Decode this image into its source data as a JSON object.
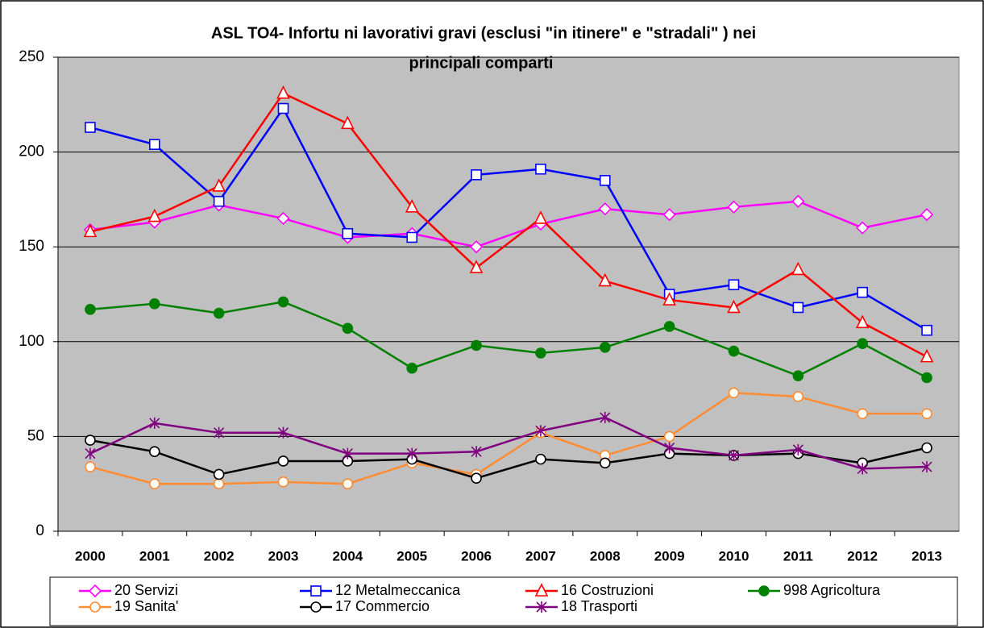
{
  "chart_data": {
    "type": "line",
    "title": [
      "ASL TO4- Infortu ni lavorativi gravi (esclusi \"in itinere\" e \"stradali\" ) nei",
      "principali comparti"
    ],
    "categories": [
      "2000",
      "2001",
      "2002",
      "2003",
      "2004",
      "2005",
      "2006",
      "2007",
      "2008",
      "2009",
      "2010",
      "2011",
      "2012",
      "2013"
    ],
    "ylim": [
      0,
      250
    ],
    "yticks": [
      0,
      50,
      100,
      150,
      200,
      250
    ],
    "grid": true,
    "legend": "bottom",
    "series": [
      {
        "name": "20 Servizi",
        "color": "#ff00ff",
        "marker": "diamond",
        "values": [
          159,
          163,
          172,
          165,
          155,
          157,
          150,
          162,
          170,
          167,
          171,
          174,
          160,
          167
        ]
      },
      {
        "name": "12 Metalmeccanica",
        "color": "#0000ff",
        "marker": "square",
        "values": [
          213,
          204,
          174,
          223,
          157,
          155,
          188,
          191,
          185,
          125,
          130,
          118,
          126,
          106
        ]
      },
      {
        "name": "16 Costruzioni",
        "color": "#ff0000",
        "marker": "triangle",
        "values": [
          158,
          166,
          182,
          231,
          215,
          171,
          139,
          165,
          132,
          122,
          118,
          138,
          110,
          92
        ]
      },
      {
        "name": "998 Agricoltura",
        "color": "#008000",
        "marker": "dot",
        "values": [
          117,
          120,
          115,
          121,
          107,
          86,
          98,
          94,
          97,
          108,
          95,
          82,
          99,
          81
        ]
      },
      {
        "name": "19 Sanita'",
        "color": "#ff8c33",
        "marker": "circle",
        "values": [
          34,
          25,
          25,
          26,
          25,
          36,
          30,
          52,
          40,
          50,
          73,
          71,
          62,
          62
        ]
      },
      {
        "name": "17 Commercio",
        "color": "#000000",
        "marker": "circle",
        "values": [
          48,
          42,
          30,
          37,
          37,
          38,
          28,
          38,
          36,
          41,
          40,
          41,
          36,
          44
        ]
      },
      {
        "name": "18 Trasporti",
        "color": "#800080",
        "marker": "star",
        "values": [
          41,
          57,
          52,
          52,
          41,
          41,
          42,
          53,
          60,
          44,
          40,
          43,
          33,
          34
        ]
      }
    ]
  }
}
